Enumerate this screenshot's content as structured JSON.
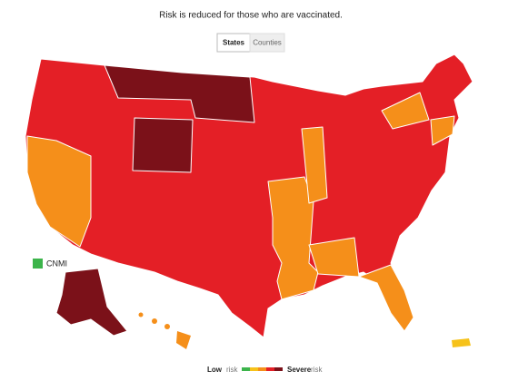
{
  "title": "Risk is reduced for those who are vaccinated.",
  "tabs": [
    "States",
    "Counties"
  ],
  "territory_label": "CNMI",
  "legend": {
    "low": "Low",
    "low_suffix": "risk",
    "high": "Severe",
    "high_suffix": "risk"
  }
}
